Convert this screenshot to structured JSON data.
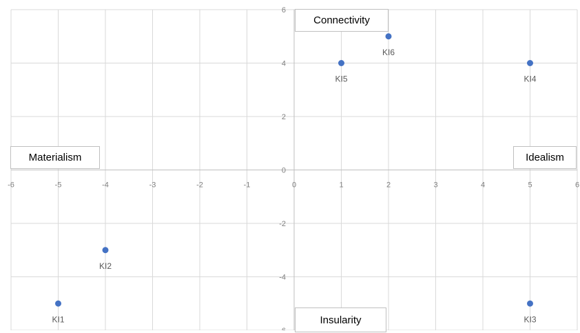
{
  "chart_data": {
    "type": "scatter",
    "xlim": [
      -6,
      6
    ],
    "ylim": [
      -6,
      6
    ],
    "x_ticks": [
      "-6",
      "-5",
      "-4",
      "-3",
      "-2",
      "-1",
      "0",
      "1",
      "2",
      "3",
      "4",
      "5",
      "6"
    ],
    "y_ticks": [
      "-6",
      "-4",
      "-2",
      "0",
      "2",
      "4",
      "6"
    ],
    "grid": true,
    "marker_color": "#4472c4",
    "points": [
      {
        "label": "KI1",
        "x": -5,
        "y": -5
      },
      {
        "label": "KI2",
        "x": -4,
        "y": -3
      },
      {
        "label": "KI3",
        "x": 5,
        "y": -5
      },
      {
        "label": "KI4",
        "x": 5,
        "y": 4
      },
      {
        "label": "KI5",
        "x": 1,
        "y": 4
      },
      {
        "label": "KI6",
        "x": 2,
        "y": 5
      }
    ],
    "axis_labels": {
      "top": "Connectivity",
      "bottom": "Insularity",
      "left": "Materialism",
      "right": "Idealism"
    }
  }
}
